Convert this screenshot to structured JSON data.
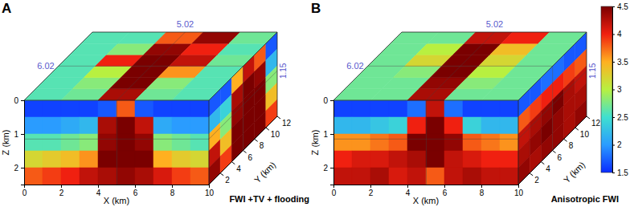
{
  "chart_data": [
    {
      "type": "heatmap",
      "panel_label": "A",
      "title": "FWI +TV + flooding",
      "x_label": "X (km)",
      "y_label": "Y (km)",
      "z_label": "Z (km)",
      "xlim": [
        0,
        10
      ],
      "xticks": [
        0,
        2,
        4,
        6,
        8,
        10
      ],
      "ylim": [
        0,
        12
      ],
      "yticks": [
        2,
        4,
        6,
        8,
        10,
        12
      ],
      "zlim": [
        0,
        2.5
      ],
      "zticks": [
        0,
        1,
        2
      ],
      "slices": {
        "x": 5.02,
        "y": 6.02,
        "z": 1.15
      },
      "faces": {
        "front": {
          "x_edges": [
            0,
            1,
            2,
            3,
            4,
            5,
            6,
            7,
            8,
            9,
            10
          ],
          "z_edges": [
            0,
            0.5,
            1,
            1.5,
            2,
            2.5
          ],
          "cells": [
            [
              1.6,
              1.6,
              1.6,
              1.6,
              1.7,
              3.8,
              1.7,
              1.6,
              1.6,
              1.6
            ],
            [
              2.0,
              2.0,
              2.1,
              2.2,
              4.3,
              4.5,
              4.2,
              2.1,
              2.0,
              2.0
            ],
            [
              2.6,
              2.6,
              2.7,
              2.8,
              4.4,
              4.5,
              4.4,
              2.8,
              2.7,
              2.6
            ],
            [
              3.2,
              3.3,
              3.4,
              3.6,
              4.5,
              4.5,
              4.5,
              3.5,
              3.3,
              3.2
            ],
            [
              3.8,
              3.9,
              4.0,
              4.2,
              4.3,
              4.4,
              4.3,
              4.1,
              3.9,
              3.8
            ]
          ]
        },
        "side": {
          "y_edges": [
            0,
            2,
            4,
            6,
            8,
            10,
            12
          ],
          "z_edges": [
            0,
            0.5,
            1,
            1.5,
            2,
            2.5
          ],
          "cells": [
            [
              1.7,
              1.7,
              3.5,
              4.2,
              3.8,
              1.7
            ],
            [
              2.2,
              2.4,
              4.3,
              4.5,
              4.4,
              2.2
            ],
            [
              3.5,
              2.8,
              4.4,
              4.5,
              4.5,
              2.8
            ],
            [
              4.2,
              3.4,
              4.5,
              4.5,
              4.5,
              3.4
            ],
            [
              4.4,
              3.9,
              4.5,
              4.5,
              4.5,
              3.9
            ]
          ]
        },
        "top": {
          "x_edges": [
            0,
            2,
            4,
            6,
            8,
            10
          ],
          "y_edges": [
            0,
            2,
            4,
            6,
            8,
            10,
            12
          ],
          "cells": [
            [
              2.6,
              2.7,
              4.3,
              2.7,
              2.6
            ],
            [
              2.6,
              2.8,
              4.5,
              2.8,
              2.6
            ],
            [
              2.6,
              3.0,
              4.5,
              3.6,
              2.6
            ],
            [
              2.6,
              4.0,
              4.5,
              4.2,
              2.7
            ],
            [
              2.6,
              2.8,
              4.4,
              4.0,
              2.6
            ],
            [
              2.6,
              2.6,
              3.8,
              4.4,
              2.7
            ]
          ]
        }
      }
    },
    {
      "type": "heatmap",
      "panel_label": "B",
      "title": "Anisotropic FWI",
      "x_label": "X (km)",
      "y_label": "Y (km)",
      "z_label": "Z (km)",
      "xlim": [
        0,
        10
      ],
      "xticks": [
        0,
        2,
        4,
        6,
        8,
        10
      ],
      "ylim": [
        0,
        12
      ],
      "yticks": [
        2,
        4,
        6,
        8,
        10,
        12
      ],
      "zlim": [
        0,
        2.5
      ],
      "zticks": [
        0,
        1,
        2
      ],
      "slices": {
        "x": 5.02,
        "y": 6.02,
        "z": 1.15
      },
      "faces": {
        "front": {
          "x_edges": [
            0,
            1,
            2,
            3,
            4,
            5,
            6,
            7,
            8,
            9,
            10
          ],
          "z_edges": [
            0,
            0.5,
            1,
            1.5,
            2,
            2.5
          ],
          "cells": [
            [
              1.6,
              1.6,
              1.6,
              1.6,
              1.8,
              4.2,
              1.8,
              1.6,
              1.6,
              1.6
            ],
            [
              2.2,
              2.2,
              2.3,
              2.4,
              4.0,
              4.5,
              4.0,
              2.4,
              2.2,
              2.2
            ],
            [
              3.6,
              3.6,
              3.7,
              3.8,
              4.5,
              4.5,
              4.4,
              3.8,
              3.7,
              3.6
            ],
            [
              4.0,
              4.1,
              4.1,
              4.2,
              4.3,
              4.5,
              4.2,
              4.1,
              4.0,
              4.0
            ],
            [
              4.2,
              4.2,
              4.3,
              4.1,
              4.2,
              3.8,
              4.2,
              4.3,
              4.2,
              4.2
            ]
          ]
        },
        "side": {
          "y_edges": [
            0,
            2,
            4,
            6,
            8,
            10,
            12
          ],
          "z_edges": [
            0,
            0.5,
            1,
            1.5,
            2,
            2.5
          ],
          "cells": [
            [
              1.7,
              1.7,
              1.8,
              1.8,
              1.7,
              1.7
            ],
            [
              3.8,
              3.9,
              4.0,
              4.0,
              3.9,
              3.8
            ],
            [
              4.2,
              4.3,
              4.4,
              4.5,
              4.3,
              4.2
            ],
            [
              4.3,
              4.4,
              4.5,
              4.4,
              4.3,
              4.3
            ],
            [
              4.4,
              4.3,
              4.4,
              4.4,
              4.3,
              4.4
            ]
          ]
        },
        "top": {
          "x_edges": [
            0,
            2,
            4,
            6,
            8,
            10
          ],
          "y_edges": [
            0,
            2,
            4,
            6,
            8,
            10,
            12
          ],
          "cells": [
            [
              2.7,
              2.7,
              4.3,
              2.7,
              2.7
            ],
            [
              2.7,
              2.7,
              4.4,
              2.8,
              2.7
            ],
            [
              2.7,
              2.8,
              4.5,
              3.0,
              2.7
            ],
            [
              2.7,
              3.2,
              4.5,
              3.2,
              2.7
            ],
            [
              2.7,
              3.0,
              4.5,
              3.4,
              2.7
            ],
            [
              2.7,
              2.7,
              4.2,
              4.0,
              2.7
            ]
          ]
        }
      },
      "colorbar": {
        "lim": [
          1.5,
          4.5
        ],
        "ticks": [
          1.5,
          2,
          2.5,
          3,
          3.5,
          4,
          4.5
        ]
      }
    }
  ]
}
